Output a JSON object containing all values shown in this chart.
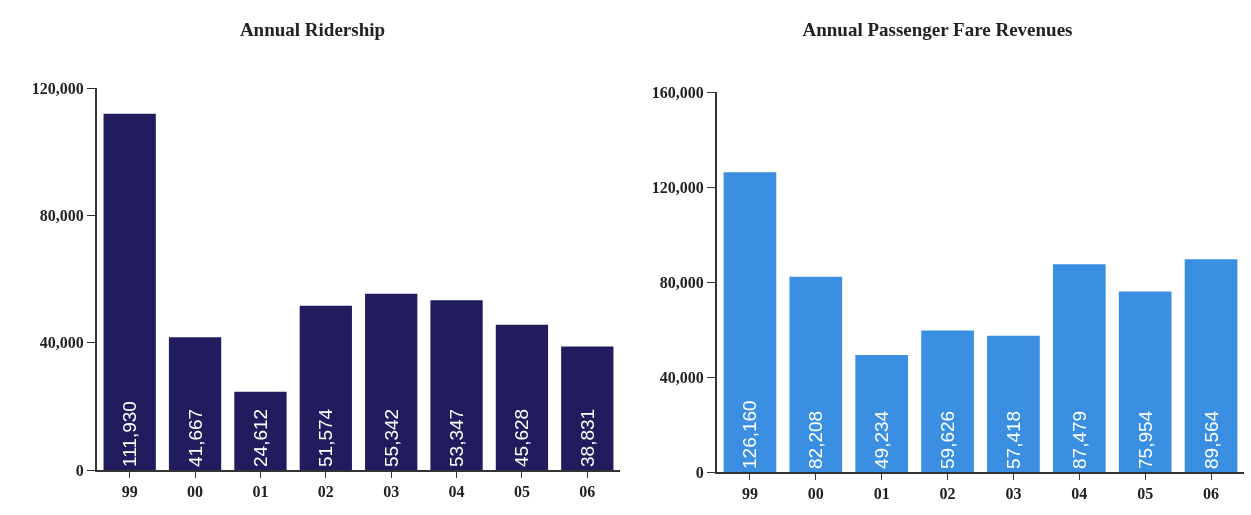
{
  "chart_data": [
    {
      "type": "bar",
      "title": "Annual Ridership",
      "categories": [
        "99",
        "00",
        "01",
        "02",
        "03",
        "04",
        "05",
        "06"
      ],
      "values": [
        111930,
        41667,
        24612,
        51574,
        55342,
        53347,
        45628,
        38831
      ],
      "value_labels": [
        "111,930",
        "41,667",
        "24,612",
        "51,574",
        "55,342",
        "53,347",
        "45,628",
        "38,831"
      ],
      "color": "#211c5e",
      "ylim": [
        0,
        120000
      ],
      "yticks": [
        {
          "value": 0,
          "label": "0"
        },
        {
          "value": 40000,
          "label": "40,000"
        },
        {
          "value": 80000,
          "label": "80,000"
        },
        {
          "value": 120000,
          "label": "120,000"
        }
      ],
      "grid": false
    },
    {
      "type": "bar",
      "title": "Annual Passenger Fare Revenues",
      "categories": [
        "99",
        "00",
        "01",
        "02",
        "03",
        "04",
        "05",
        "06"
      ],
      "values": [
        126160,
        82208,
        49234,
        59626,
        57418,
        87479,
        75954,
        89564
      ],
      "value_labels": [
        "126,160",
        "82,208",
        "49,234",
        "59,626",
        "57,418",
        "87,479",
        "75,954",
        "89,564"
      ],
      "color": "#3b8fe3",
      "ylim": [
        0,
        160000
      ],
      "yticks": [
        {
          "value": 0,
          "label": "0"
        },
        {
          "value": 40000,
          "label": "40,000"
        },
        {
          "value": 80000,
          "label": "80,000"
        },
        {
          "value": 120000,
          "label": "120,000"
        },
        {
          "value": 160000,
          "label": "160,000"
        }
      ],
      "grid": false
    }
  ]
}
